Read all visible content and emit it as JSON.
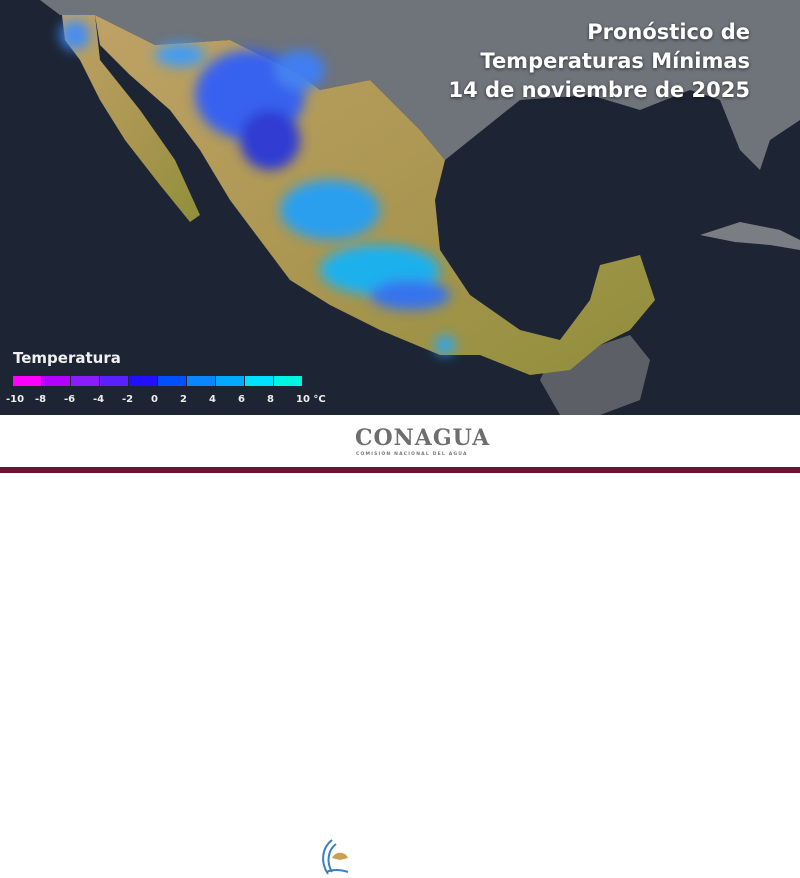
{
  "title": {
    "line1": "Pronóstico de",
    "line2": "Temperaturas Mínimas",
    "line3": "14 de noviembre de 2025"
  },
  "legend": {
    "title": "Temperatura",
    "colors": [
      "#ff00ff",
      "#b400ff",
      "#8a1cff",
      "#5a20ff",
      "#2010ff",
      "#0050ff",
      "#0a86ff",
      "#00aaff",
      "#00e0ff",
      "#00f5e0"
    ],
    "ticks": [
      "-10",
      "-8",
      "-6",
      "-4",
      "-2",
      "0",
      "2",
      "4",
      "6",
      "8",
      "10 °C"
    ]
  },
  "footer": {
    "logo_name": "CONAGUA",
    "logo_subtitle": "COMISIÓN NACIONAL DEL AGUA"
  },
  "colors": {
    "ocean": "#1c2533",
    "land_other": "#6b6f75",
    "mexico_land": "#b59a5a",
    "footer_bar": "#6b1230"
  }
}
